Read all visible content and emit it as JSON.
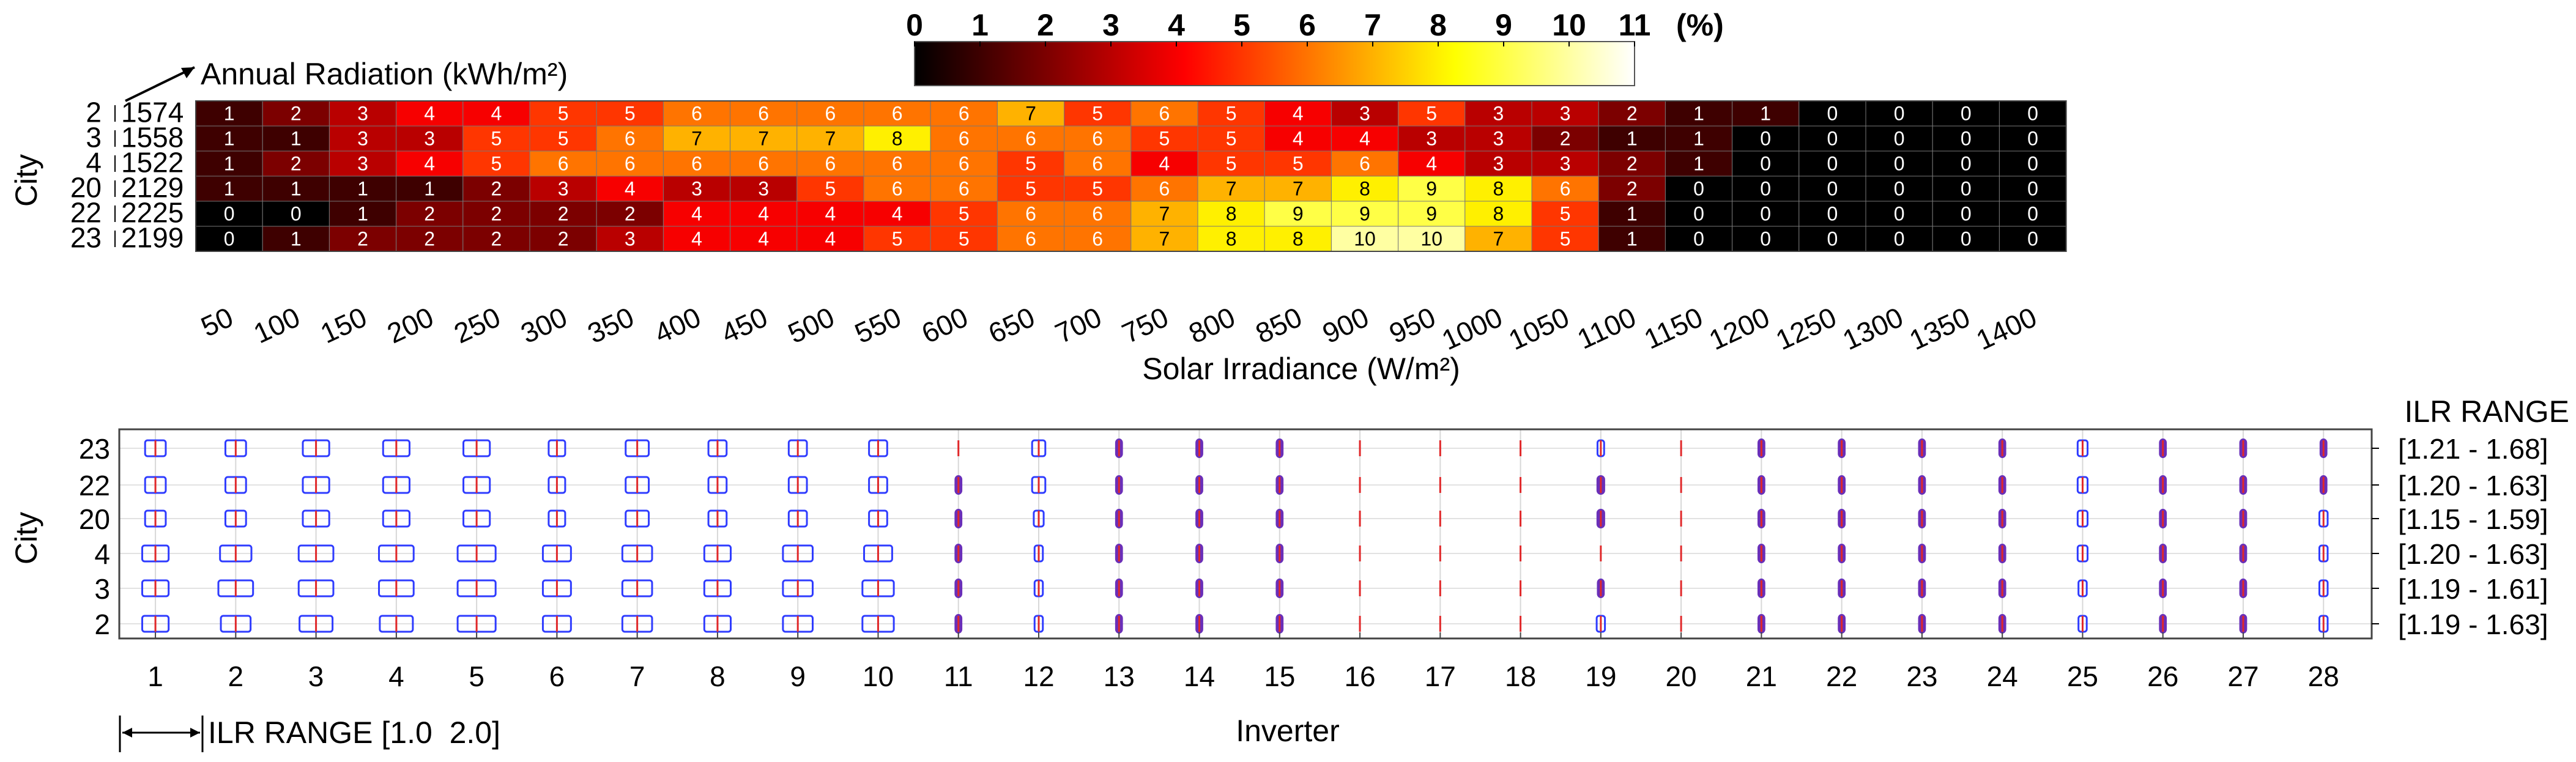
{
  "chart_data": [
    {
      "type": "heatmap",
      "title": "",
      "xlabel": "Solar Irradiance (W/m²)",
      "ylabel": "City",
      "row_header_note": "Annual Radiation (kWh/m²)",
      "rows": [
        "2 | 1574",
        "3 | 1558",
        "4 | 1522",
        "20 | 2129",
        "22 | 2225",
        "23 | 2199"
      ],
      "columns": [
        "50",
        "100",
        "150",
        "200",
        "250",
        "300",
        "350",
        "400",
        "450",
        "500",
        "550",
        "600",
        "650",
        "700",
        "750",
        "800",
        "850",
        "900",
        "950",
        "1000",
        "1050",
        "1100",
        "1150",
        "1200",
        "1250",
        "1300",
        "1350",
        "1400"
      ],
      "values": [
        [
          1,
          2,
          3,
          4,
          4,
          5,
          5,
          6,
          6,
          6,
          6,
          6,
          7,
          5,
          6,
          5,
          4,
          3,
          5,
          3,
          3,
          2,
          1,
          1,
          0,
          0,
          0,
          0
        ],
        [
          1,
          1,
          3,
          3,
          5,
          5,
          6,
          7,
          7,
          7,
          8,
          6,
          6,
          6,
          5,
          5,
          4,
          4,
          3,
          3,
          2,
          1,
          1,
          0,
          0,
          0,
          0,
          0
        ],
        [
          1,
          2,
          3,
          4,
          5,
          6,
          6,
          6,
          6,
          6,
          6,
          6,
          5,
          6,
          4,
          5,
          5,
          6,
          4,
          3,
          3,
          2,
          1,
          0,
          0,
          0,
          0,
          0
        ],
        [
          1,
          1,
          1,
          1,
          2,
          3,
          4,
          3,
          3,
          5,
          6,
          6,
          5,
          5,
          6,
          7,
          7,
          8,
          9,
          8,
          6,
          2,
          0,
          0,
          0,
          0,
          0,
          0
        ],
        [
          0,
          0,
          1,
          2,
          2,
          2,
          2,
          4,
          4,
          4,
          4,
          5,
          6,
          6,
          7,
          8,
          9,
          9,
          9,
          8,
          5,
          1,
          0,
          0,
          0,
          0,
          0,
          0
        ],
        [
          0,
          1,
          2,
          2,
          2,
          2,
          3,
          4,
          4,
          4,
          5,
          5,
          6,
          6,
          7,
          8,
          8,
          10,
          10,
          7,
          5,
          1,
          0,
          0,
          0,
          0,
          0,
          0
        ]
      ],
      "colorbar": {
        "ticks": [
          "0",
          "1",
          "2",
          "3",
          "4",
          "5",
          "6",
          "7",
          "8",
          "9",
          "10",
          "11"
        ],
        "unit": "(%)",
        "range": [
          0,
          11
        ],
        "colormap": "hot"
      }
    },
    {
      "type": "boxplot",
      "title": "",
      "xlabel": "Inverter",
      "ylabel": "City",
      "categories": [
        "1",
        "2",
        "3",
        "4",
        "5",
        "6",
        "7",
        "8",
        "9",
        "10",
        "11",
        "12",
        "13",
        "14",
        "15",
        "16",
        "17",
        "18",
        "19",
        "20",
        "21",
        "22",
        "23",
        "24",
        "25",
        "26",
        "27",
        "28"
      ],
      "cities": [
        "23",
        "22",
        "20",
        "4",
        "3",
        "2"
      ],
      "ilr_range_header": "ILR RANGE",
      "ilr_ranges": [
        "[1.21 - 1.68]",
        "[1.20 - 1.63]",
        "[1.15 - 1.59]",
        "[1.20 - 1.63]",
        "[1.19 - 1.61]",
        "[1.19 - 1.63]"
      ],
      "scale_note": "ILR RANGE [1.0  2.0]",
      "x_domain": [
        0.55,
        28.6
      ],
      "box_scale_range": [
        1.0,
        2.0
      ],
      "box_widths": [
        [
          0.25,
          0.25,
          0.32,
          0.32,
          0.32,
          0.2,
          0.28,
          0.22,
          0.22,
          0.22,
          0.0,
          0.16,
          0.05,
          0.05,
          0.05,
          0.0,
          0.0,
          0.0,
          0.08,
          0.0,
          0.05,
          0.05,
          0.05,
          0.05,
          0.12,
          0.05,
          0.05,
          0.05
        ],
        [
          0.25,
          0.25,
          0.32,
          0.32,
          0.32,
          0.2,
          0.28,
          0.22,
          0.22,
          0.22,
          0.05,
          0.16,
          0.05,
          0.05,
          0.05,
          0.0,
          0.0,
          0.0,
          0.06,
          0.0,
          0.05,
          0.05,
          0.05,
          0.05,
          0.12,
          0.05,
          0.05,
          0.05
        ],
        [
          0.25,
          0.25,
          0.32,
          0.32,
          0.32,
          0.2,
          0.28,
          0.22,
          0.22,
          0.22,
          0.05,
          0.12,
          0.05,
          0.05,
          0.05,
          0.0,
          0.0,
          0.0,
          0.06,
          0.0,
          0.05,
          0.05,
          0.05,
          0.05,
          0.12,
          0.05,
          0.05,
          0.1
        ],
        [
          0.32,
          0.38,
          0.42,
          0.42,
          0.46,
          0.34,
          0.36,
          0.32,
          0.36,
          0.34,
          0.05,
          0.1,
          0.05,
          0.05,
          0.05,
          0.0,
          0.0,
          0.0,
          0.0,
          0.0,
          0.05,
          0.05,
          0.05,
          0.05,
          0.12,
          0.05,
          0.05,
          0.1
        ],
        [
          0.32,
          0.42,
          0.42,
          0.42,
          0.46,
          0.34,
          0.36,
          0.32,
          0.36,
          0.38,
          0.05,
          0.1,
          0.05,
          0.05,
          0.05,
          0.0,
          0.0,
          0.0,
          0.05,
          0.0,
          0.05,
          0.05,
          0.05,
          0.05,
          0.1,
          0.05,
          0.05,
          0.1
        ],
        [
          0.32,
          0.36,
          0.4,
          0.4,
          0.46,
          0.34,
          0.36,
          0.32,
          0.36,
          0.38,
          0.05,
          0.1,
          0.05,
          0.05,
          0.05,
          0.0,
          0.0,
          0.0,
          0.1,
          0.0,
          0.05,
          0.05,
          0.05,
          0.05,
          0.1,
          0.05,
          0.05,
          0.1
        ]
      ]
    }
  ]
}
